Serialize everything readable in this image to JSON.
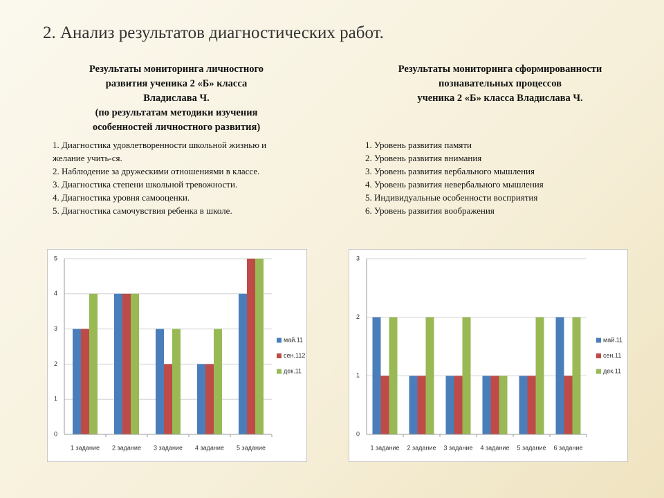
{
  "slide": {
    "title": "2. Анализ результатов диагностических работ.",
    "left_heading": [
      "Результаты мониторинга личностного",
      "развития ученика 2 «Б» класса",
      "Владислава Ч.",
      "(по результатам методики изучения",
      "особенностей личностного развития)"
    ],
    "left_list": [
      "1. Диагностика удовлетворенности школьной жизнью и желание учить-ся.",
      "2. Наблюдение за дружескими отношениями в классе.",
      "3. Диагностика степени школьной тревожности.",
      "4. Диагностика уровня самооценки.",
      "5. Диагностика самочувствия ребенка в школе."
    ],
    "right_heading": [
      "Результаты мониторинга сформированности",
      "познавательных процессов",
      "ученика 2 «Б» класса Владислава Ч."
    ],
    "right_list": [
      "1. Уровень развития памяти",
      "2. Уровень развития внимания",
      "3. Уровень развития вербального мышления",
      "4. Уровень развития невербального мышления",
      "5. Индивидуальные особенности восприятия",
      "6. Уровень развития воображения"
    ]
  },
  "chart_data": [
    {
      "type": "bar",
      "categories": [
        "1 задание",
        "2 задание",
        "3 задание",
        "4 задание",
        "5 задание"
      ],
      "series": [
        {
          "name": "май.11",
          "color": "#4a7ebb",
          "values": [
            3,
            4,
            3,
            2,
            4
          ]
        },
        {
          "name": "сен.112",
          "color": "#be4b48",
          "values": [
            3,
            4,
            2,
            2,
            5
          ]
        },
        {
          "name": "дек.11",
          "color": "#98b954",
          "values": [
            4,
            4,
            3,
            3,
            5
          ]
        }
      ],
      "ylim": [
        0,
        5
      ],
      "yticks": [
        0,
        1,
        2,
        3,
        4,
        5
      ],
      "grid": true,
      "legend": "right"
    },
    {
      "type": "bar",
      "categories": [
        "1 задание",
        "2 задание",
        "3 задание",
        "4 задание",
        "5 задание",
        "6 задание"
      ],
      "series": [
        {
          "name": "май.11",
          "color": "#4a7ebb",
          "values": [
            2,
            1,
            1,
            1,
            1,
            2
          ]
        },
        {
          "name": "сен.11",
          "color": "#be4b48",
          "values": [
            1,
            1,
            1,
            1,
            1,
            1
          ]
        },
        {
          "name": "дек.11",
          "color": "#98b954",
          "values": [
            2,
            2,
            2,
            1,
            2,
            2
          ]
        }
      ],
      "ylim": [
        0,
        3
      ],
      "yticks": [
        0,
        1,
        2,
        3
      ],
      "grid": true,
      "legend": "right"
    }
  ]
}
